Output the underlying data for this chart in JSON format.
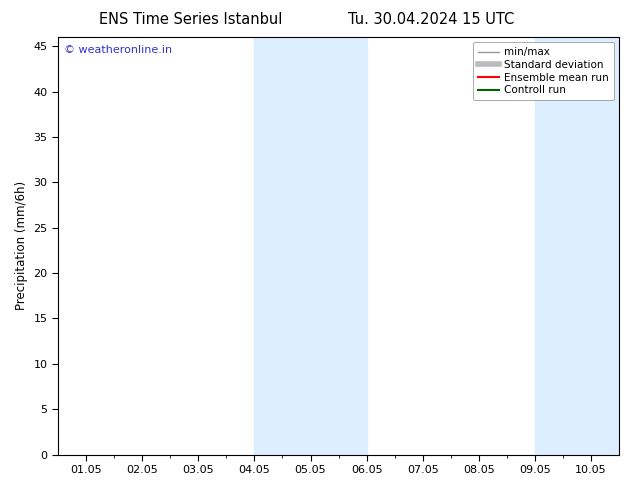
{
  "title_left": "ENS Time Series Istanbul",
  "title_right": "Tu. 30.04.2024 15 UTC",
  "ylabel": "Precipitation (mm/6h)",
  "ylim": [
    0,
    46
  ],
  "yticks": [
    0,
    5,
    10,
    15,
    20,
    25,
    30,
    35,
    40,
    45
  ],
  "xtick_labels": [
    "01.05",
    "02.05",
    "03.05",
    "04.05",
    "05.05",
    "06.05",
    "07.05",
    "08.05",
    "09.05",
    "10.05"
  ],
  "shaded_bands": [
    {
      "xmin": 3.0,
      "xmax": 5.0
    },
    {
      "xmin": 8.0,
      "xmax": 9.5
    }
  ],
  "band_color": "#ddeeff",
  "watermark": "© weatheronline.in",
  "watermark_color": "#3333cc",
  "legend_items": [
    {
      "label": "min/max",
      "color": "#999999",
      "lw": 1.0
    },
    {
      "label": "Standard deviation",
      "color": "#bbbbbb",
      "lw": 4.0
    },
    {
      "label": "Ensemble mean run",
      "color": "#ff0000",
      "lw": 1.5
    },
    {
      "label": "Controll run",
      "color": "#006600",
      "lw": 1.5
    }
  ],
  "bg_color": "#ffffff",
  "title_fontsize": 10.5,
  "label_fontsize": 8.5,
  "tick_fontsize": 8,
  "watermark_fontsize": 8,
  "legend_fontsize": 7.5
}
